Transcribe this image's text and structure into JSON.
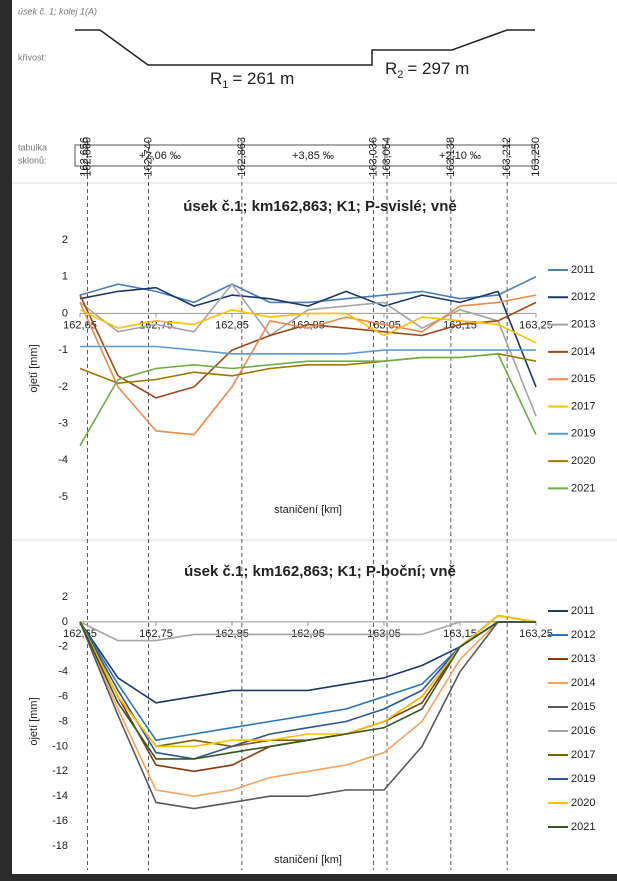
{
  "track_diagram": {
    "title": "úsek č. 1; kolej 1(A)",
    "curvature_label": "křivost:",
    "radii": [
      {
        "letter": "R",
        "subscript": "1",
        "rest": "= 261 m"
      },
      {
        "letter": "R",
        "subscript": "2",
        "rest": "= 297 m"
      }
    ],
    "stations": [
      {
        "value": 162.656,
        "label": "162,656",
        "faint": true
      },
      {
        "value": 162.66,
        "label": "162,660",
        "faint": false
      },
      {
        "value": 162.74,
        "label": "162,740",
        "faint": false
      },
      {
        "value": 162.863,
        "label": "162,863",
        "faint": false
      },
      {
        "value": 163.036,
        "label": "163,036",
        "faint": false
      },
      {
        "value": 163.054,
        "label": "163,054",
        "faint": false
      },
      {
        "value": 163.138,
        "label": "163,138",
        "faint": false
      },
      {
        "value": 163.212,
        "label": "163,212",
        "faint": false
      },
      {
        "value": 163.25,
        "label": "163,250",
        "faint": true
      }
    ],
    "slope_table_label": [
      "tabulka",
      "sklonů:"
    ],
    "slopes": [
      "+2,06 ‰",
      "+3,85 ‰",
      "+2,10 ‰"
    ]
  },
  "chart_data": [
    {
      "type": "line",
      "title": "úsek č.1; km162,863; K1; P-svislé; vně",
      "x_label": "staničení [km]",
      "y_label": "ojetí [mm]",
      "x": [
        162.65,
        162.7,
        162.75,
        162.8,
        162.85,
        162.9,
        162.95,
        163.0,
        163.05,
        163.1,
        163.15,
        163.2,
        163.25
      ],
      "xlim": [
        162.65,
        163.25
      ],
      "xticks": [
        {
          "value": 162.65,
          "label": "162,65"
        },
        {
          "value": 162.75,
          "label": "162,75"
        },
        {
          "value": 162.85,
          "label": "162,85"
        },
        {
          "value": 162.95,
          "label": "162,95"
        },
        {
          "value": 163.05,
          "label": "163,05"
        },
        {
          "value": 163.15,
          "label": "163,15"
        },
        {
          "value": 163.25,
          "label": "163,25"
        }
      ],
      "ylim": [
        -5,
        2
      ],
      "yticks": [
        -5,
        -4,
        -3,
        -2,
        -1,
        0,
        1,
        2
      ],
      "grid": false,
      "legend": "right",
      "series": [
        {
          "name": "2011",
          "color": "#4a7ebb",
          "values": [
            0.5,
            0.8,
            0.6,
            0.3,
            0.8,
            0.3,
            0.3,
            0.4,
            0.5,
            0.6,
            0.4,
            0.5,
            1.0
          ]
        },
        {
          "name": "2012",
          "color": "#1f3864",
          "values": [
            0.4,
            0.6,
            0.7,
            0.2,
            0.5,
            0.4,
            0.2,
            0.6,
            0.2,
            0.5,
            0.3,
            0.6,
            -2.0
          ]
        },
        {
          "name": "2013",
          "color": "#a5a5a5",
          "values": [
            0.3,
            -0.5,
            -0.3,
            -0.5,
            0.8,
            -0.6,
            0.1,
            0.2,
            0.3,
            -0.4,
            0.1,
            -0.2,
            -2.8
          ]
        },
        {
          "name": "2014",
          "color": "#9c4a1a",
          "values": [
            0.5,
            -1.7,
            -2.3,
            -2.0,
            -1.0,
            -0.6,
            -0.3,
            -0.4,
            -0.5,
            -0.6,
            -0.3,
            -0.2,
            0.3
          ]
        },
        {
          "name": "2015",
          "color": "#f08a4b",
          "values": [
            0.3,
            -2.0,
            -3.2,
            -3.3,
            -2.0,
            -0.2,
            -0.4,
            -0.1,
            -0.3,
            -0.5,
            0.2,
            0.3,
            0.5
          ]
        },
        {
          "name": "2017",
          "color": "#ffc000",
          "values": [
            0.1,
            -0.4,
            -0.2,
            -0.3,
            0.1,
            -0.1,
            0.0,
            0.0,
            -0.6,
            -0.1,
            -0.2,
            -0.3,
            -0.8
          ]
        },
        {
          "name": "2019",
          "color": "#5b9bd5",
          "values": [
            -0.9,
            -0.9,
            -0.9,
            -1.0,
            -1.1,
            -1.1,
            -1.1,
            -1.1,
            -1.0,
            -1.0,
            -1.0,
            -1.0,
            -1.0
          ]
        },
        {
          "name": "2020",
          "color": "#9c7a00",
          "values": [
            -1.5,
            -1.9,
            -1.8,
            -1.6,
            -1.7,
            -1.5,
            -1.4,
            -1.4,
            -1.3,
            -1.2,
            -1.2,
            -1.1,
            -1.3
          ]
        },
        {
          "name": "2021",
          "color": "#70ad47",
          "values": [
            -3.6,
            -1.8,
            -1.5,
            -1.4,
            -1.5,
            -1.4,
            -1.3,
            -1.3,
            -1.3,
            -1.2,
            -1.2,
            -1.1,
            -3.3
          ]
        }
      ]
    },
    {
      "type": "line",
      "title": "úsek č.1; km162,863; K1; P-boční; vně",
      "x_label": "staničení [km]",
      "y_label": "ojetí [mm]",
      "x": [
        162.65,
        162.7,
        162.75,
        162.8,
        162.85,
        162.9,
        162.95,
        163.0,
        163.05,
        163.1,
        163.15,
        163.2,
        163.25
      ],
      "xlim": [
        162.65,
        163.25
      ],
      "xticks": [
        {
          "value": 162.65,
          "label": "162,65"
        },
        {
          "value": 162.75,
          "label": "162,75"
        },
        {
          "value": 162.85,
          "label": "162,85"
        },
        {
          "value": 162.95,
          "label": "162,95"
        },
        {
          "value": 163.05,
          "label": "163,05"
        },
        {
          "value": 163.15,
          "label": "163,15"
        },
        {
          "value": 163.25,
          "label": "163,25"
        }
      ],
      "ylim": [
        -18,
        2
      ],
      "yticks": [
        -18,
        -16,
        -14,
        -12,
        -10,
        -8,
        -6,
        -4,
        -2,
        0,
        2
      ],
      "grid": false,
      "legend": "right",
      "series": [
        {
          "name": "2011",
          "color": "#1f3864",
          "values": [
            0,
            -4.5,
            -6.5,
            -6,
            -5.5,
            -5.5,
            -5.5,
            -5,
            -4.5,
            -3.5,
            -2,
            0,
            0
          ]
        },
        {
          "name": "2012",
          "color": "#2e75b6",
          "values": [
            0,
            -5,
            -9.5,
            -9,
            -8.5,
            -8,
            -7.5,
            -7,
            -6,
            -5,
            -2,
            0.5,
            0
          ]
        },
        {
          "name": "2013",
          "color": "#843c0c",
          "values": [
            0,
            -6,
            -11.5,
            -12,
            -11.5,
            -10,
            -9.5,
            -9,
            -8,
            -6.5,
            -2,
            0,
            0
          ]
        },
        {
          "name": "2014",
          "color": "#f4a460",
          "values": [
            0,
            -7,
            -13.5,
            -14,
            -13.5,
            -12.5,
            -12,
            -11.5,
            -10.5,
            -8,
            -3,
            0,
            0
          ]
        },
        {
          "name": "2015",
          "color": "#595959",
          "values": [
            0,
            -7.5,
            -14.5,
            -15,
            -14.5,
            -14,
            -14,
            -13.5,
            -13.5,
            -10,
            -4,
            0,
            0
          ]
        },
        {
          "name": "2016",
          "color": "#a5a5a5",
          "values": [
            0,
            -1.5,
            -1.5,
            -1,
            -1,
            -1,
            -1,
            -1,
            -1,
            -1,
            0,
            0,
            0
          ]
        },
        {
          "name": "2017",
          "color": "#7f6000",
          "values": [
            0,
            -6,
            -10,
            -9.5,
            -10,
            -9.5,
            -9.5,
            -9,
            -8,
            -6,
            -2,
            0.5,
            0
          ]
        },
        {
          "name": "2019",
          "color": "#2f5597",
          "values": [
            0,
            -5.5,
            -10.5,
            -11,
            -10,
            -9,
            -8.5,
            -8,
            -7,
            -5.5,
            -2,
            0,
            0
          ]
        },
        {
          "name": "2020",
          "color": "#ffc000",
          "values": [
            0,
            -6,
            -10,
            -10,
            -9.5,
            -9.5,
            -9,
            -9,
            -8,
            -6,
            -2,
            0.5,
            0
          ]
        },
        {
          "name": "2021",
          "color": "#375623",
          "values": [
            0,
            -6.5,
            -11,
            -11,
            -10.5,
            -10,
            -9.5,
            -9,
            -8.5,
            -7,
            -2,
            0,
            0
          ]
        }
      ]
    }
  ]
}
